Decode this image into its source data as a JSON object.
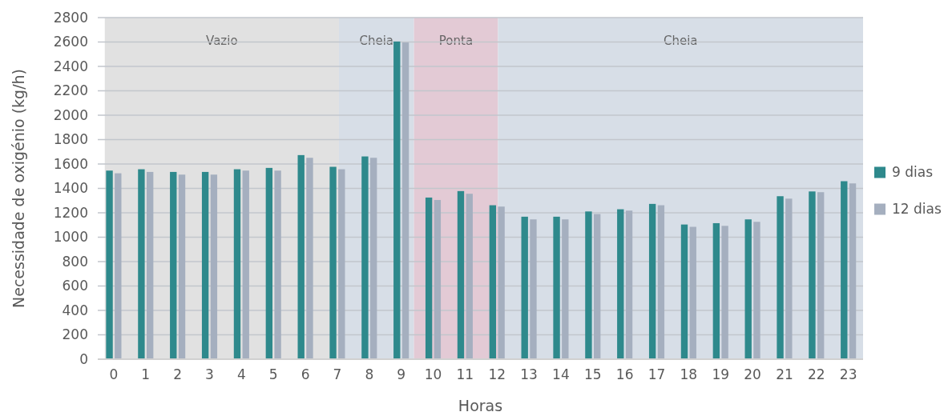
{
  "chart_data": {
    "type": "bar",
    "xlabel": "Horas",
    "ylabel": "Necessidade de oxigénio (kg/h)",
    "x": [
      0,
      1,
      2,
      3,
      4,
      5,
      6,
      7,
      8,
      9,
      10,
      11,
      12,
      13,
      14,
      15,
      16,
      17,
      18,
      19,
      20,
      21,
      22,
      23
    ],
    "xlim": [
      -0.5,
      23.46
    ],
    "xticks": [
      0,
      1,
      2,
      3,
      4,
      5,
      6,
      7,
      8,
      9,
      10,
      11,
      12,
      13,
      14,
      15,
      16,
      17,
      18,
      19,
      20,
      21,
      22,
      23
    ],
    "ylim": [
      0,
      2800
    ],
    "yticks": [
      0,
      200,
      400,
      600,
      800,
      1000,
      1200,
      1400,
      1600,
      1800,
      2000,
      2200,
      2400,
      2600,
      2800
    ],
    "grid": "y",
    "legend": "right",
    "bands": [
      {
        "axis": "x",
        "from": -0.28,
        "to": 7.05,
        "label": "Vazio",
        "color": "#dedede"
      },
      {
        "axis": "x",
        "from": 7.05,
        "to": 9.4,
        "label": "Cheia",
        "color": "#d3dae4"
      },
      {
        "axis": "x",
        "from": 9.4,
        "to": 12.03,
        "label": "Ponta",
        "color": "#e0c4d0"
      },
      {
        "axis": "x",
        "from": 12.03,
        "to": 23.46,
        "label": "Cheia",
        "color": "#d3dae4"
      }
    ],
    "series": [
      {
        "name": "9 dias",
        "color": "#2e898c",
        "values": [
          1546,
          1557,
          1535,
          1535,
          1557,
          1568,
          1673,
          1577,
          1662,
          2604,
          1325,
          1378,
          1262,
          1168,
          1168,
          1211,
          1229,
          1273,
          1104,
          1115,
          1146,
          1336,
          1375,
          1459
        ]
      },
      {
        "name": "12 dias",
        "color": "#a5afbf",
        "values": [
          1524,
          1535,
          1513,
          1513,
          1546,
          1546,
          1651,
          1557,
          1651,
          2596,
          1305,
          1356,
          1251,
          1146,
          1146,
          1190,
          1218,
          1262,
          1085,
          1093,
          1126,
          1316,
          1369,
          1441
        ]
      }
    ]
  }
}
